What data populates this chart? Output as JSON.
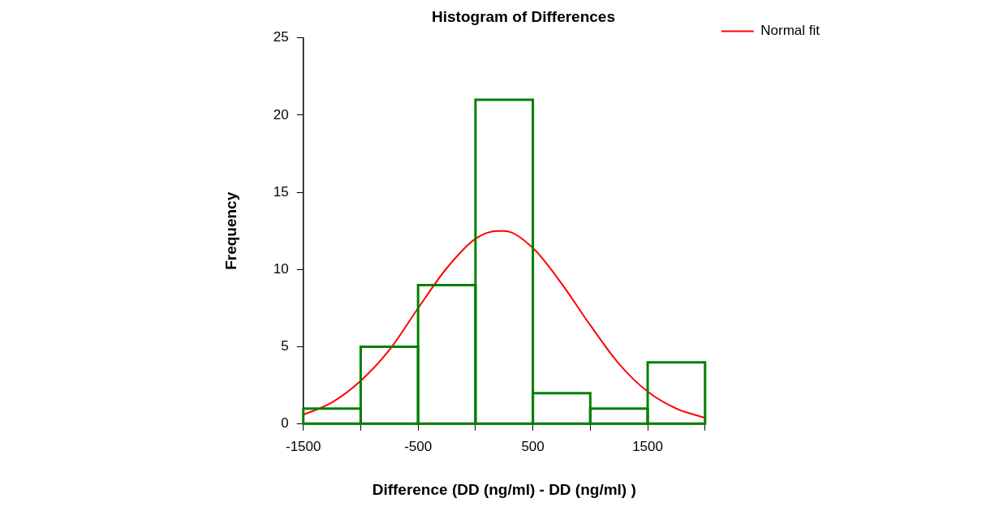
{
  "chart_data": {
    "type": "histogram",
    "title": "Histogram of Differences",
    "xlabel": "Difference (DD (ng/ml) - DD (ng/ml) )",
    "ylabel": "Frequency",
    "bins": [
      -1500,
      -1000,
      -500,
      0,
      500,
      1000,
      1500,
      2000
    ],
    "values": [
      1,
      5,
      9,
      21,
      2,
      1,
      4
    ],
    "color": "#008000",
    "series": [
      {
        "type": "line",
        "name": "Normal fit",
        "color": "#ff0000",
        "x": [
          -1500,
          -1250,
          -1000,
          -750,
          -500,
          -250,
          0,
          200,
          250,
          500,
          750,
          1000,
          1250,
          1500,
          1750,
          2000
        ],
        "values": [
          0.6,
          1.4,
          2.8,
          4.8,
          7.5,
          10.1,
          12.0,
          12.5,
          12.5,
          11.4,
          9.1,
          6.4,
          3.9,
          2.1,
          1.0,
          0.4
        ]
      }
    ],
    "xlim": [
      -1500,
      2000
    ],
    "xticks": [
      -1500,
      {
        "value": -1000,
        "label": null
      },
      -500,
      {
        "value": 0,
        "label": null
      },
      500,
      {
        "value": 1000,
        "label": null
      },
      1500,
      {
        "value": 2000,
        "label": null
      }
    ],
    "ylim": [
      0,
      25
    ],
    "yticks": [
      0,
      5,
      10,
      15,
      20,
      25
    ],
    "grid": false,
    "legend": "top right",
    "marker": "none",
    "line_style": "solid"
  }
}
